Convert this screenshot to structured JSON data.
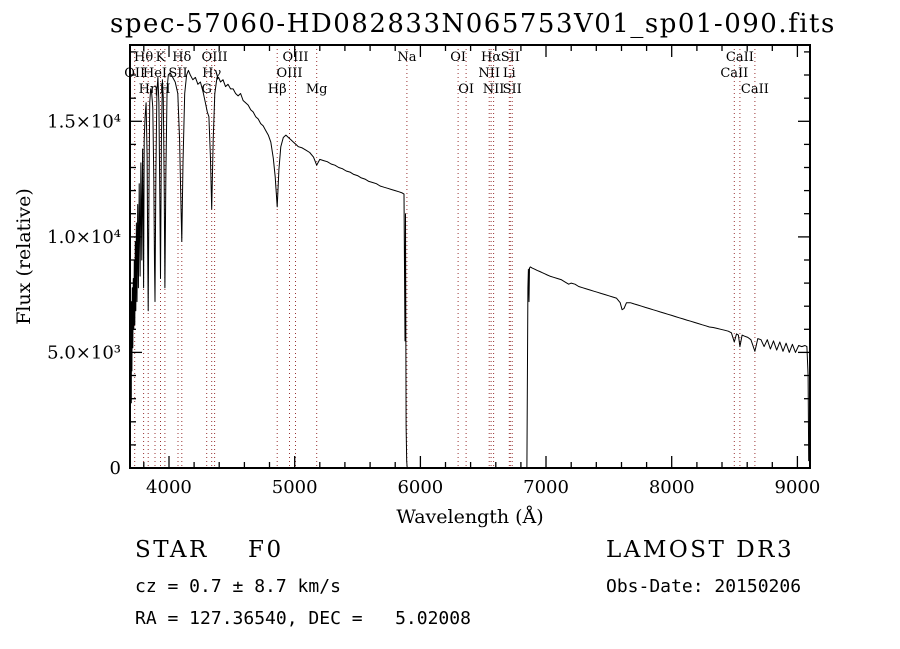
{
  "chart_data": {
    "type": "line",
    "title": "spec-57060-HD082833N065753V01_sp01-090.fits",
    "xlabel": "Wavelength (Å)",
    "ylabel": "Flux (relative)",
    "xlim": [
      3690,
      9100
    ],
    "ylim": [
      0,
      18300
    ],
    "grid": false,
    "legend": "none",
    "colors": {
      "spectrum": "#000000",
      "line_markers": "#993333",
      "frame": "#000000"
    },
    "x_ticks": [
      {
        "value": 4000,
        "label": "4000"
      },
      {
        "value": 5000,
        "label": "5000"
      },
      {
        "value": 6000,
        "label": "6000"
      },
      {
        "value": 7000,
        "label": "7000"
      },
      {
        "value": 8000,
        "label": "8000"
      },
      {
        "value": 9000,
        "label": "9000"
      }
    ],
    "y_ticks": [
      {
        "value": 0,
        "label": "0"
      },
      {
        "value": 5000,
        "label": "5.0×10³"
      },
      {
        "value": 10000,
        "label": "1.0×10⁴"
      },
      {
        "value": 15000,
        "label": "1.5×10⁴"
      }
    ],
    "x_minor_step": 200,
    "y_minor_step": 1000,
    "spectral_lines": [
      {
        "label": "OII",
        "wavelength": 3727,
        "row": 1
      },
      {
        "label": "Hθ",
        "wavelength": 3798,
        "row": 0
      },
      {
        "label": "Hη",
        "wavelength": 3835,
        "row": 2
      },
      {
        "label": "HeI",
        "wavelength": 3889,
        "row": 1
      },
      {
        "label": "K",
        "wavelength": 3933,
        "row": 0
      },
      {
        "label": "H",
        "wavelength": 3968,
        "row": 2
      },
      {
        "label": "SII",
        "wavelength": 4072,
        "row": 1
      },
      {
        "label": "Hδ",
        "wavelength": 4102,
        "row": 0
      },
      {
        "label": "G",
        "wavelength": 4300,
        "row": 2
      },
      {
        "label": "Hγ",
        "wavelength": 4340,
        "row": 1
      },
      {
        "label": "OIII",
        "wavelength": 4363,
        "row": 0
      },
      {
        "label": "Hβ",
        "wavelength": 4861,
        "row": 2
      },
      {
        "label": "OIII",
        "wavelength": 4959,
        "row": 1
      },
      {
        "label": "OIII",
        "wavelength": 5007,
        "row": 0
      },
      {
        "label": "Mg",
        "wavelength": 5175,
        "row": 2
      },
      {
        "label": "Na",
        "wavelength": 5893,
        "row": 0
      },
      {
        "label": "OI",
        "wavelength": 6300,
        "row": 0
      },
      {
        "label": "OI",
        "wavelength": 6364,
        "row": 2
      },
      {
        "label": "NII",
        "wavelength": 6548,
        "row": 1
      },
      {
        "label": "Hα",
        "wavelength": 6563,
        "row": 0
      },
      {
        "label": "NII",
        "wavelength": 6583,
        "row": 2
      },
      {
        "label": "Li",
        "wavelength": 6708,
        "row": 1
      },
      {
        "label": "SII",
        "wavelength": 6716,
        "row": 0
      },
      {
        "label": "SII",
        "wavelength": 6731,
        "row": 2
      },
      {
        "label": "CaII",
        "wavelength": 8498,
        "row": 1
      },
      {
        "label": "CaII",
        "wavelength": 8542,
        "row": 0
      },
      {
        "label": "CaII",
        "wavelength": 8662,
        "row": 2
      }
    ],
    "series": [
      {
        "name": "spectrum",
        "points": [
          [
            3700,
            2800
          ],
          [
            3702,
            7200
          ],
          [
            3705,
            4200
          ],
          [
            3708,
            7800
          ],
          [
            3712,
            5200
          ],
          [
            3716,
            8200
          ],
          [
            3720,
            6000
          ],
          [
            3724,
            9000
          ],
          [
            3728,
            6200
          ],
          [
            3732,
            9800
          ],
          [
            3736,
            6800
          ],
          [
            3741,
            10600
          ],
          [
            3746,
            7200
          ],
          [
            3751,
            11400
          ],
          [
            3757,
            7800
          ],
          [
            3763,
            12300
          ],
          [
            3770,
            8300
          ],
          [
            3777,
            13200
          ],
          [
            3784,
            9000
          ],
          [
            3790,
            13800
          ],
          [
            3795,
            10500
          ],
          [
            3798,
            7800
          ],
          [
            3803,
            14200
          ],
          [
            3810,
            15200
          ],
          [
            3818,
            15800
          ],
          [
            3826,
            13500
          ],
          [
            3831,
            9500
          ],
          [
            3835,
            6800
          ],
          [
            3840,
            11500
          ],
          [
            3847,
            15800
          ],
          [
            3855,
            16400
          ],
          [
            3863,
            16200
          ],
          [
            3871,
            15600
          ],
          [
            3879,
            12500
          ],
          [
            3885,
            8800
          ],
          [
            3889,
            7200
          ],
          [
            3896,
            12800
          ],
          [
            3904,
            16300
          ],
          [
            3912,
            16900
          ],
          [
            3920,
            15800
          ],
          [
            3927,
            11800
          ],
          [
            3933,
            8200
          ],
          [
            3940,
            14200
          ],
          [
            3948,
            16800
          ],
          [
            3955,
            16000
          ],
          [
            3962,
            12200
          ],
          [
            3968,
            7800
          ],
          [
            3976,
            12800
          ],
          [
            3985,
            16400
          ],
          [
            3995,
            17000
          ],
          [
            4010,
            17100
          ],
          [
            4030,
            16900
          ],
          [
            4050,
            16700
          ],
          [
            4070,
            16200
          ],
          [
            4085,
            14200
          ],
          [
            4095,
            11500
          ],
          [
            4102,
            9800
          ],
          [
            4112,
            13200
          ],
          [
            4125,
            16200
          ],
          [
            4140,
            17000
          ],
          [
            4155,
            17200
          ],
          [
            4170,
            17000
          ],
          [
            4190,
            16800
          ],
          [
            4210,
            16900
          ],
          [
            4230,
            16600
          ],
          [
            4250,
            16700
          ],
          [
            4270,
            16300
          ],
          [
            4290,
            15800
          ],
          [
            4305,
            15400
          ],
          [
            4318,
            15200
          ],
          [
            4330,
            13500
          ],
          [
            4340,
            11200
          ],
          [
            4352,
            14200
          ],
          [
            4365,
            16200
          ],
          [
            4380,
            16800
          ],
          [
            4395,
            16900
          ],
          [
            4410,
            16700
          ],
          [
            4430,
            16800
          ],
          [
            4450,
            16500
          ],
          [
            4470,
            16600
          ],
          [
            4490,
            16400
          ],
          [
            4510,
            16400
          ],
          [
            4530,
            16200
          ],
          [
            4550,
            16100
          ],
          [
            4570,
            16200
          ],
          [
            4590,
            15900
          ],
          [
            4610,
            15800
          ],
          [
            4630,
            15700
          ],
          [
            4650,
            15500
          ],
          [
            4670,
            15400
          ],
          [
            4690,
            15200
          ],
          [
            4710,
            15100
          ],
          [
            4730,
            14900
          ],
          [
            4750,
            14800
          ],
          [
            4770,
            14600
          ],
          [
            4790,
            14400
          ],
          [
            4810,
            14100
          ],
          [
            4830,
            13400
          ],
          [
            4845,
            12600
          ],
          [
            4861,
            11300
          ],
          [
            4875,
            12900
          ],
          [
            4890,
            13900
          ],
          [
            4910,
            14300
          ],
          [
            4930,
            14400
          ],
          [
            4950,
            14300
          ],
          [
            4970,
            14200
          ],
          [
            4990,
            14100
          ],
          [
            5010,
            14000
          ],
          [
            5030,
            13900
          ],
          [
            5060,
            13850
          ],
          [
            5090,
            13750
          ],
          [
            5120,
            13650
          ],
          [
            5150,
            13450
          ],
          [
            5175,
            13100
          ],
          [
            5200,
            13350
          ],
          [
            5230,
            13300
          ],
          [
            5260,
            13250
          ],
          [
            5290,
            13150
          ],
          [
            5320,
            13100
          ],
          [
            5350,
            13000
          ],
          [
            5380,
            12950
          ],
          [
            5410,
            12850
          ],
          [
            5440,
            12800
          ],
          [
            5470,
            12700
          ],
          [
            5500,
            12650
          ],
          [
            5530,
            12550
          ],
          [
            5560,
            12500
          ],
          [
            5590,
            12400
          ],
          [
            5620,
            12350
          ],
          [
            5650,
            12300
          ],
          [
            5680,
            12200
          ],
          [
            5710,
            12150
          ],
          [
            5740,
            12100
          ],
          [
            5770,
            12050
          ],
          [
            5800,
            12000
          ],
          [
            5830,
            11950
          ],
          [
            5855,
            11900
          ],
          [
            5870,
            11850
          ],
          [
            5878,
            5500
          ],
          [
            5882,
            11000
          ],
          [
            5887,
            1800
          ],
          [
            5891,
            300
          ],
          [
            5895,
            0
          ],
          [
            6848,
            0
          ],
          [
            6856,
            7800
          ],
          [
            6860,
            8600
          ],
          [
            6864,
            7200
          ],
          [
            6868,
            8650
          ],
          [
            6875,
            8700
          ],
          [
            6890,
            8650
          ],
          [
            6910,
            8600
          ],
          [
            6930,
            8550
          ],
          [
            6950,
            8500
          ],
          [
            6970,
            8450
          ],
          [
            6990,
            8400
          ],
          [
            7010,
            8350
          ],
          [
            7030,
            8300
          ],
          [
            7060,
            8250
          ],
          [
            7090,
            8200
          ],
          [
            7120,
            8150
          ],
          [
            7150,
            8050
          ],
          [
            7180,
            7950
          ],
          [
            7200,
            8000
          ],
          [
            7230,
            7950
          ],
          [
            7260,
            7850
          ],
          [
            7290,
            7800
          ],
          [
            7320,
            7750
          ],
          [
            7350,
            7700
          ],
          [
            7380,
            7650
          ],
          [
            7410,
            7600
          ],
          [
            7440,
            7550
          ],
          [
            7470,
            7500
          ],
          [
            7500,
            7450
          ],
          [
            7530,
            7400
          ],
          [
            7560,
            7350
          ],
          [
            7590,
            7150
          ],
          [
            7605,
            6850
          ],
          [
            7620,
            6900
          ],
          [
            7640,
            7150
          ],
          [
            7670,
            7150
          ],
          [
            7700,
            7100
          ],
          [
            7730,
            7050
          ],
          [
            7760,
            7000
          ],
          [
            7790,
            6950
          ],
          [
            7820,
            6900
          ],
          [
            7850,
            6850
          ],
          [
            7880,
            6800
          ],
          [
            7910,
            6750
          ],
          [
            7940,
            6700
          ],
          [
            7970,
            6650
          ],
          [
            8000,
            6600
          ],
          [
            8030,
            6550
          ],
          [
            8060,
            6500
          ],
          [
            8090,
            6450
          ],
          [
            8120,
            6400
          ],
          [
            8150,
            6350
          ],
          [
            8180,
            6300
          ],
          [
            8210,
            6250
          ],
          [
            8240,
            6200
          ],
          [
            8270,
            6150
          ],
          [
            8300,
            6100
          ],
          [
            8330,
            6080
          ],
          [
            8360,
            6040
          ],
          [
            8390,
            6000
          ],
          [
            8420,
            5960
          ],
          [
            8450,
            5920
          ],
          [
            8475,
            5850
          ],
          [
            8498,
            5450
          ],
          [
            8515,
            5800
          ],
          [
            8530,
            5750
          ],
          [
            8542,
            5250
          ],
          [
            8560,
            5750
          ],
          [
            8580,
            5700
          ],
          [
            8605,
            5650
          ],
          [
            8630,
            5550
          ],
          [
            8662,
            5050
          ],
          [
            8685,
            5600
          ],
          [
            8710,
            5550
          ],
          [
            8735,
            5250
          ],
          [
            8760,
            5550
          ],
          [
            8785,
            5150
          ],
          [
            8810,
            5500
          ],
          [
            8835,
            5100
          ],
          [
            8860,
            5450
          ],
          [
            8885,
            5050
          ],
          [
            8910,
            5400
          ],
          [
            8935,
            5000
          ],
          [
            8960,
            5350
          ],
          [
            8985,
            5000
          ],
          [
            9010,
            5300
          ],
          [
            9035,
            5250
          ],
          [
            9060,
            5300
          ],
          [
            9075,
            5250
          ],
          [
            9085,
            4000
          ],
          [
            9090,
            300
          ]
        ]
      }
    ]
  },
  "annotations": {
    "class_label": "STAR    F0",
    "cz": "cz = 0.7 ± 8.7 km/s",
    "radec": "RA = 127.36540, DEC =   5.02008",
    "survey": "LAMOST DR3",
    "obs_date": "Obs-Date: 20150206"
  }
}
